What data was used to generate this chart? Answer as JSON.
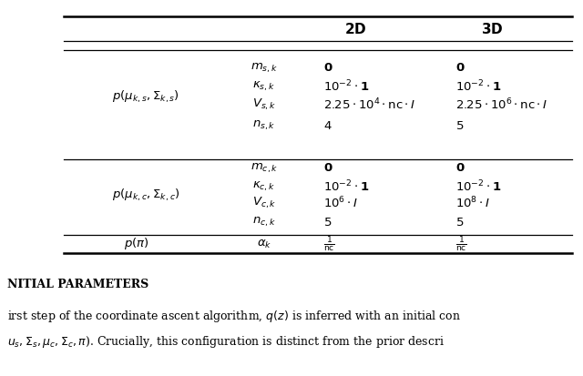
{
  "background_color": "#ffffff",
  "header_2d": "\\textbf{2D}",
  "header_3d": "\\textbf{3D}",
  "rows": [
    {
      "group_label": "$p(\\mu_{k,s}, \\Sigma_{k,s})$",
      "param": "$m_{s,k}$",
      "val_2d": "$\\mathbf{0}$",
      "val_3d": "$\\mathbf{0}$"
    },
    {
      "group_label": "",
      "param": "$\\kappa_{s,k}$",
      "val_2d": "$10^{-2} \\cdot \\mathbf{1}$",
      "val_3d": "$10^{-2} \\cdot \\mathbf{1}$"
    },
    {
      "group_label": "",
      "param": "$V_{s,k}$",
      "val_2d": "$2.25 \\cdot 10^{4} \\cdot \\mathrm{nc} \\cdot I$",
      "val_3d": "$2.25 \\cdot 10^{6} \\cdot \\mathrm{nc} \\cdot I$"
    },
    {
      "group_label": "",
      "param": "$n_{s,k}$",
      "val_2d": "$4$",
      "val_3d": "$5$"
    },
    {
      "group_label": "$p(\\mu_{k,c}, \\Sigma_{k,c})$",
      "param": "$m_{c,k}$",
      "val_2d": "$\\mathbf{0}$",
      "val_3d": "$\\mathbf{0}$"
    },
    {
      "group_label": "",
      "param": "$\\kappa_{c,k}$",
      "val_2d": "$10^{-2} \\cdot \\mathbf{1}$",
      "val_3d": "$10^{-2} \\cdot \\mathbf{1}$"
    },
    {
      "group_label": "",
      "param": "$V_{c,k}$",
      "val_2d": "$10^{6} \\cdot I$",
      "val_3d": "$10^{8} \\cdot I$"
    },
    {
      "group_label": "",
      "param": "$n_{c,k}$",
      "val_2d": "$5$",
      "val_3d": "$5$"
    },
    {
      "group_label": "$p(\\pi)$",
      "param": "$\\alpha_{k}$",
      "val_2d": "$\\frac{1}{\\mathrm{nc}}$",
      "val_3d": "$\\frac{1}{\\mathrm{nc}}$"
    }
  ],
  "footer_text1": "NITIAL PARAMETERS",
  "footer_text2": "irst step of the coordinate ascent algorithm, $q(z)$ is inferred with an initial con",
  "footer_text3": "$u_s, \\Sigma_s, \\mu_c, \\Sigma_c, \\pi$). Crucially, this configuration is distinct from the prior descri"
}
